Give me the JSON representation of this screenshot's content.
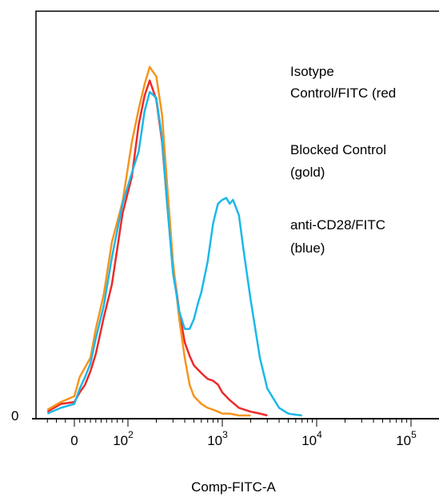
{
  "chart_data": {
    "type": "line",
    "title": "",
    "xlabel": "Comp-FITC-A",
    "ylabel": "",
    "x_scale": "biexponential",
    "xlim": [
      -40,
      200000
    ],
    "ylim": [
      0,
      100
    ],
    "y_tick_labels": [
      "0"
    ],
    "x_tick_labels": [
      {
        "base": "0",
        "exp": ""
      },
      {
        "base": "10",
        "exp": "2"
      },
      {
        "base": "10",
        "exp": "3"
      },
      {
        "base": "10",
        "exp": "4"
      },
      {
        "base": "10",
        "exp": "5"
      }
    ],
    "legend": {
      "placement": "top-right",
      "lines": [
        "Isotype",
        "Control/FITC (red",
        "Blocked Control",
        "(gold)",
        "anti-CD28/FITC",
        "(blue)"
      ]
    },
    "series": [
      {
        "color": "#ee2a2a",
        "x": [
          -30,
          -15,
          0,
          10,
          20,
          30,
          40,
          55,
          70,
          90,
          110,
          130,
          150,
          170,
          200,
          230,
          260,
          300,
          350,
          400,
          450,
          500,
          600,
          700,
          800,
          900,
          1000,
          1200,
          1500,
          2000,
          2500,
          3000
        ],
        "y": [
          1,
          3,
          3.5,
          6,
          8,
          11.5,
          16,
          25.5,
          34,
          52.5,
          62,
          75.5,
          83,
          87,
          82,
          71,
          55,
          39,
          27,
          19,
          15.5,
          13,
          11,
          9.5,
          9,
          8,
          6,
          4,
          2,
          1,
          0.5,
          0
        ]
      },
      {
        "color": "#f7941d",
        "x": [
          -30,
          -15,
          0,
          10,
          20,
          30,
          40,
          55,
          70,
          90,
          110,
          130,
          150,
          170,
          200,
          230,
          260,
          300,
          350,
          400,
          450,
          500,
          600,
          700,
          800,
          900,
          1000,
          1200,
          1500,
          2000
        ],
        "y": [
          1.5,
          3.5,
          5,
          10,
          12.5,
          15,
          22.5,
          31.5,
          45,
          55.5,
          71,
          79.5,
          86,
          90.5,
          88,
          78,
          60,
          40,
          25,
          15,
          8,
          5,
          3,
          2,
          1.5,
          1,
          0.5,
          0.5,
          0,
          0
        ]
      },
      {
        "color": "#1cb8e8",
        "x": [
          -30,
          -15,
          0,
          10,
          20,
          30,
          40,
          55,
          70,
          90,
          110,
          130,
          150,
          170,
          200,
          230,
          260,
          300,
          350,
          400,
          450,
          500,
          550,
          600,
          700,
          800,
          900,
          1000,
          1100,
          1200,
          1300,
          1500,
          1700,
          2000,
          2500,
          3000,
          4000,
          5000,
          6000,
          7000
        ],
        "y": [
          0.5,
          2,
          3,
          7,
          10,
          13.5,
          20,
          28.5,
          41,
          55,
          63,
          68.5,
          79,
          84,
          82.5,
          72,
          55,
          37,
          27,
          22.5,
          22.5,
          25,
          29,
          32,
          40,
          50,
          55,
          56,
          56.5,
          55,
          56,
          52,
          42,
          30,
          15,
          7,
          2,
          0.5,
          0.2,
          0
        ]
      }
    ]
  }
}
